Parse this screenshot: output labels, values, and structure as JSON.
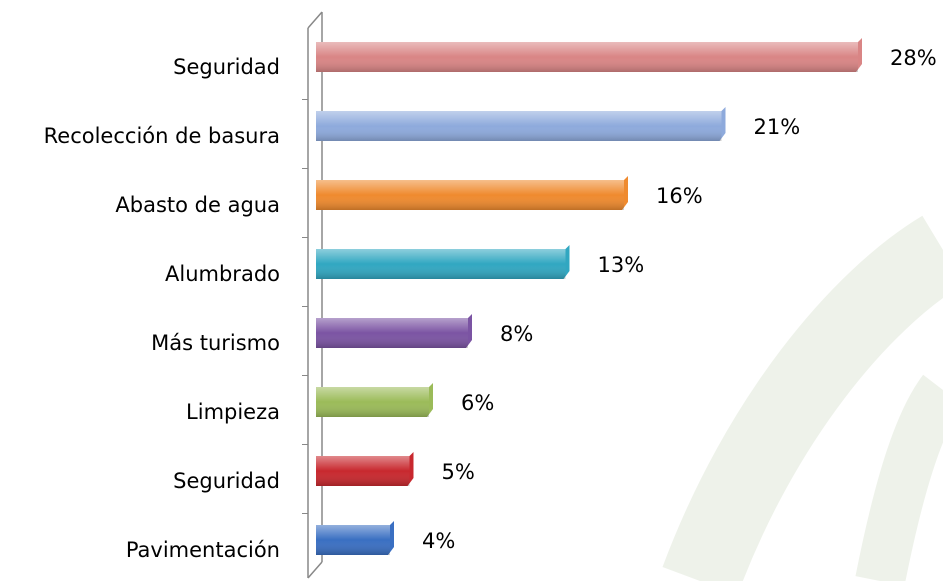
{
  "chart_data": {
    "type": "bar",
    "orientation": "horizontal",
    "categories": [
      "Seguridad",
      "Recolección de basura",
      "Abasto de agua",
      "Alumbrado",
      "Más turismo",
      "Limpieza",
      "Seguridad",
      "Pavimentación"
    ],
    "values": [
      28,
      21,
      16,
      13,
      8,
      6,
      5,
      4
    ],
    "value_labels": [
      "28%",
      "21%",
      "16%",
      "13%",
      "8%",
      "6%",
      "5%",
      "4%"
    ],
    "colors": [
      "#d98585",
      "#8eaadc",
      "#ef8a2e",
      "#31a7c1",
      "#7b54a3",
      "#9bbb59",
      "#c8282e",
      "#3a6fc2"
    ]
  }
}
